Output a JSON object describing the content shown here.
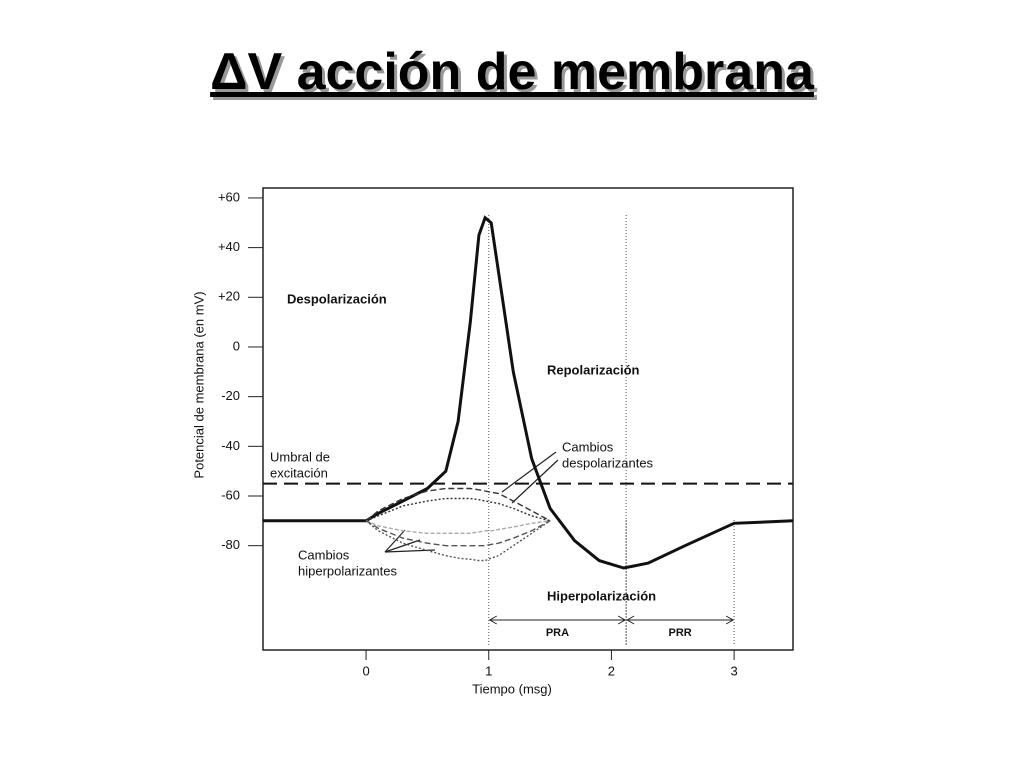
{
  "title": "ΔV acción de membrana",
  "chart_data": {
    "type": "line",
    "y_label": "Potencial de membrana (en mV)",
    "x_label": "Tiempo (msg)",
    "xlim": [
      -0.84,
      3.48
    ],
    "ylim": [
      -122,
      64
    ],
    "xticks": [
      0,
      1,
      2,
      3
    ],
    "yticks": [
      {
        "value": 60,
        "label": "+60"
      },
      {
        "value": 40,
        "label": "+40"
      },
      {
        "value": 20,
        "label": "+20"
      },
      0,
      -20,
      -40,
      -60,
      -80
    ],
    "x": [
      -0.84,
      0,
      0.1,
      0.3,
      0.5,
      0.65,
      0.75,
      0.85,
      0.92,
      0.97,
      1.02,
      1.08,
      1.2,
      1.35,
      1.5,
      1.7,
      1.9,
      2.1,
      2.3,
      2.6,
      3.0,
      3.48
    ],
    "series": [
      {
        "color": "#111111",
        "dash": "none",
        "values": [
          -70,
          -70,
          -67,
          -62,
          -57,
          -50,
          -30,
          10,
          45,
          52,
          50,
          30,
          -10,
          -45,
          -65,
          -78,
          -86,
          -89,
          -87,
          -80,
          -71,
          -70
        ]
      },
      {
        "color": "#333333",
        "dash": "6 3",
        "values": [
          null,
          -70,
          -66,
          -61,
          -58,
          -57,
          -57,
          -57,
          -57.5,
          -58,
          -58.5,
          -59,
          -62,
          -66,
          -70,
          null,
          null,
          null,
          null,
          null,
          null,
          null
        ]
      },
      {
        "color": "#333333",
        "dash": "2 2",
        "values": [
          null,
          -70,
          -68,
          -64,
          -62,
          -61,
          -61,
          -61,
          -61.5,
          -62,
          -62.5,
          -63,
          -65,
          -68,
          -70,
          null,
          null,
          null,
          null,
          null,
          null,
          null
        ]
      },
      {
        "color": "#aaaaaa",
        "dash": "4 2",
        "values": [
          null,
          -70,
          -72,
          -74,
          -75,
          -75,
          -75,
          -75,
          -74.5,
          -74,
          -74,
          -73.5,
          -72.5,
          -71,
          -70,
          null,
          null,
          null,
          null,
          null,
          null,
          null
        ]
      },
      {
        "color": "#555555",
        "dash": "6 3",
        "values": [
          null,
          -70,
          -73,
          -77,
          -79,
          -80,
          -80,
          -80,
          -80,
          -80,
          -79.5,
          -79,
          -77,
          -74,
          -70,
          null,
          null,
          null,
          null,
          null,
          null,
          null
        ]
      },
      {
        "color": "#555555",
        "dash": "2 2",
        "values": [
          null,
          -70,
          -74,
          -79,
          -82,
          -84,
          -85,
          -85.5,
          -86,
          -86,
          -85,
          -84,
          -80,
          -75,
          -70,
          null,
          null,
          null,
          null,
          null,
          null,
          null
        ]
      }
    ],
    "threshold": -55,
    "periods": [
      {
        "label": "PRA",
        "start": 1,
        "end": 2.12
      },
      {
        "label": "PRR",
        "start": 2.12,
        "end": 3
      }
    ],
    "annotations": [
      [
        "Despolarización"
      ],
      [
        "Repolarización"
      ],
      [
        "Hiperpolarización"
      ],
      [
        "Umbral de",
        "excitación"
      ],
      [
        "Cambios",
        "despolarizantes"
      ],
      [
        "Cambios",
        "hiperpolarizantes"
      ]
    ]
  }
}
